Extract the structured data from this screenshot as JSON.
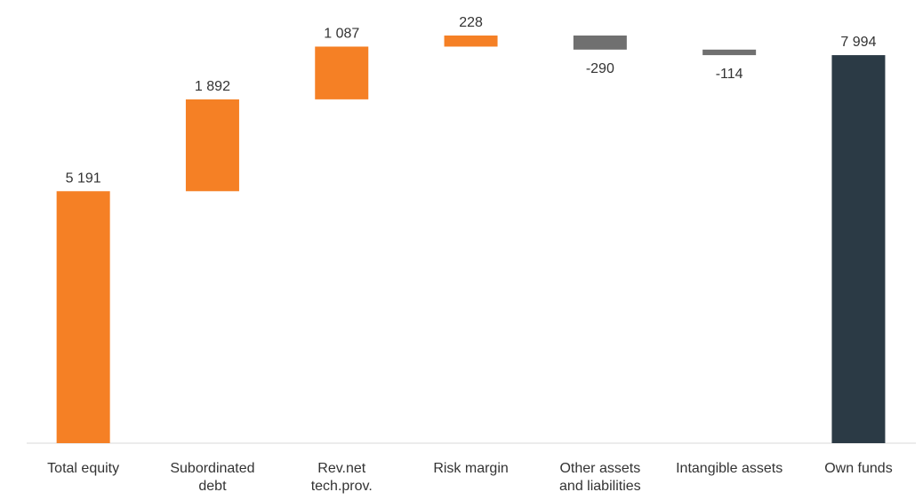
{
  "chart_data": {
    "type": "waterfall",
    "categories": [
      [
        "Total equity"
      ],
      [
        "Subordinated",
        "debt"
      ],
      [
        "Rev.net",
        "tech.prov."
      ],
      [
        "Risk margin"
      ],
      [
        "Other assets",
        "and liabilities"
      ],
      [
        "Intangible assets"
      ],
      [
        "Own funds"
      ]
    ],
    "values": [
      5191,
      1892,
      1087,
      228,
      -290,
      -114,
      7994
    ],
    "value_labels": [
      "5 191",
      "1 892",
      "1 087",
      "228",
      "-290",
      "-114",
      "7 994"
    ],
    "measure": [
      "absolute",
      "relative",
      "relative",
      "relative",
      "relative",
      "relative",
      "total"
    ],
    "colors": {
      "increase": "#f58025",
      "decrease": "#707070",
      "total": "#2b3a45"
    },
    "ylim": [
      0,
      9130
    ]
  }
}
